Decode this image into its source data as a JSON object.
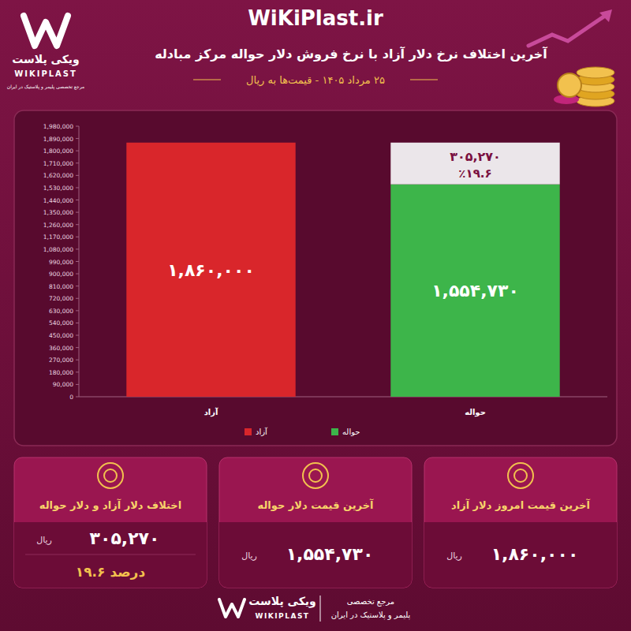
{
  "header": {
    "site": "WiKiPlast.ir",
    "title": "آخرین اختلاف نرخ دلار آزاد با نرخ فروش دلار حواله مرکز مبادله",
    "subtitle": "۲۵ مرداد ۱۴۰۵ - قیمت‌ها به ریال"
  },
  "logo": {
    "name_fa": "ویکی پلاست",
    "name_en": "WIKIPLAST",
    "tagline": "مرجع تخصصی پلیمر و پلاستیک در ایران"
  },
  "chart_data": {
    "type": "bar",
    "categories": [
      "آزاد",
      "حواله"
    ],
    "series": [
      {
        "name": "آزاد",
        "color": "#d9262b",
        "values": [
          1860000,
          null
        ],
        "value_labels": [
          "۱,۸۶۰,۰۰۰",
          null
        ]
      },
      {
        "name": "حواله",
        "color": "#3db54a",
        "values": [
          null,
          1554730
        ],
        "value_labels": [
          null,
          "۱,۵۵۴,۷۳۰"
        ]
      }
    ],
    "difference": {
      "category": "حواله",
      "value": 305270,
      "label": "۳۰۵,۲۷۰",
      "percent_label": "٪۱۹.۶",
      "color": "#ebe6ea"
    },
    "ylim": [
      0,
      1980000
    ],
    "yticks": [
      0,
      {
        "value": 90000,
        "label": "90,000"
      },
      {
        "value": 180000,
        "label": "180,000"
      },
      {
        "value": 270000,
        "label": "270,000"
      },
      {
        "value": 360000,
        "label": "360,000"
      },
      {
        "value": 450000,
        "label": "450,000"
      },
      {
        "value": 540000,
        "label": "540,000"
      },
      {
        "value": 630000,
        "label": "630,000"
      },
      {
        "value": 720000,
        "label": "720,000"
      },
      {
        "value": 810000,
        "label": "810,000"
      },
      {
        "value": 900000,
        "label": "900,000"
      },
      {
        "value": 990000,
        "label": "990,000"
      },
      {
        "value": 1080000,
        "label": "1,080,000"
      },
      {
        "value": 1170000,
        "label": "1,170,000"
      },
      {
        "value": 1260000,
        "label": "1,260,000"
      },
      {
        "value": 1350000,
        "label": "1,350,000"
      },
      {
        "value": 1440000,
        "label": "1,440,000"
      },
      {
        "value": 1530000,
        "label": "1,530,000"
      },
      {
        "value": 1620000,
        "label": "1,620,000"
      },
      {
        "value": 1710000,
        "label": "1,710,000"
      },
      {
        "value": 1800000,
        "label": "1,800,000"
      },
      {
        "value": 1890000,
        "label": "1,890,000"
      },
      {
        "value": 1980000,
        "label": "1,980,000"
      }
    ],
    "grid": false,
    "legend": "bottom",
    "data_labels": true
  },
  "cards": [
    {
      "title": "آخرین قیمت امروز دلار آزاد",
      "value": "۱,۸۶۰,۰۰۰",
      "unit": "ریال"
    },
    {
      "title": "آخرین قیمت دلار حواله",
      "value": "۱,۵۵۴,۷۳۰",
      "unit": "ریال"
    },
    {
      "title": "اختلاف دلار آزاد و دلار حواله",
      "value": "۳۰۵,۲۷۰",
      "unit": "ریال",
      "percent": "۱۹.۶ درصد"
    }
  ],
  "footer": {
    "name_fa": "ویکی پلاست",
    "name_en": "WIKIPLAST",
    "tagline_1": "مرجع تخصصی",
    "tagline_2": "پلیمر و پلاستیک در ایران"
  }
}
